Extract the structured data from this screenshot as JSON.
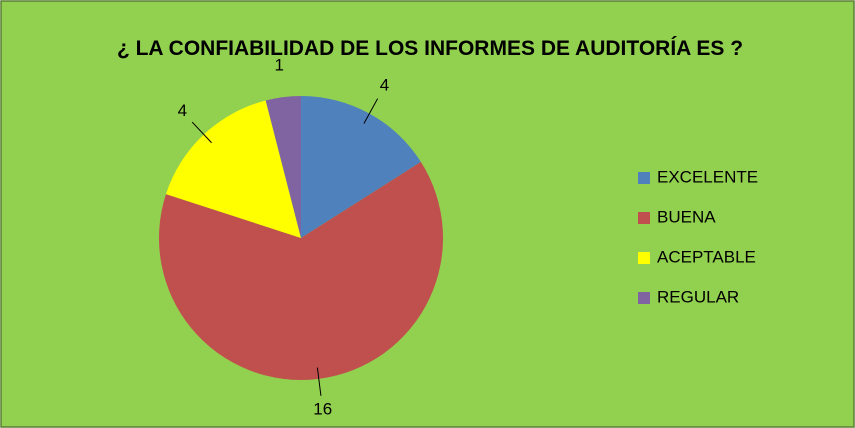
{
  "chart_data": {
    "type": "pie",
    "title": "¿ LA CONFIABILIDAD DE LOS INFORMES DE AUDITORÍA ES ?",
    "categories": [
      "EXCELENTE",
      "BUENA",
      "ACEPTABLE",
      "REGULAR"
    ],
    "values": [
      4,
      16,
      4,
      1
    ],
    "colors": [
      "#4f81bd",
      "#c0504d",
      "#ffff00",
      "#8064a2"
    ],
    "legend": "right"
  }
}
